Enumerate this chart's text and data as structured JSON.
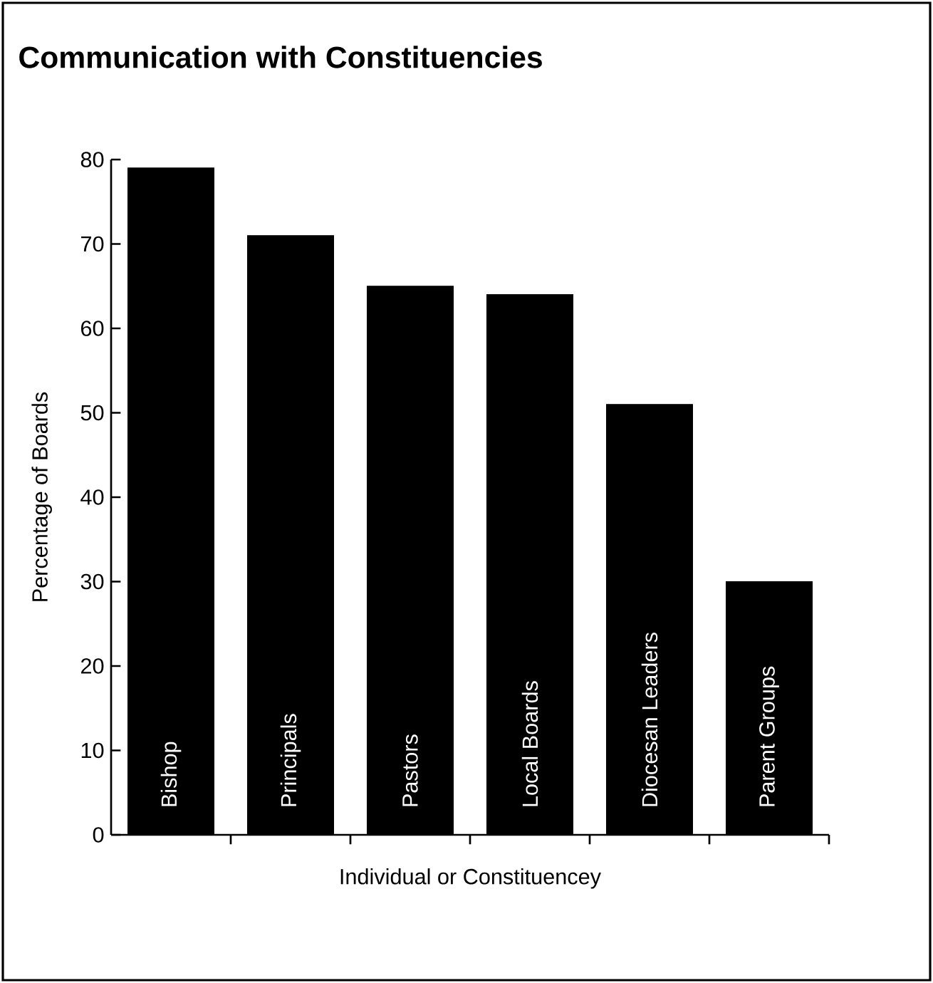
{
  "chart_data": {
    "type": "bar",
    "title": "Communication with Constituencies",
    "xlabel": "Individual or Constituencey",
    "ylabel": "Percentage of Boards",
    "categories": [
      "Bishop",
      "Principals",
      "Pastors",
      "Local Boards",
      "Diocesan Leaders",
      "Parent Groups"
    ],
    "values": [
      79,
      71,
      65,
      64,
      51,
      30
    ],
    "color": "#000000",
    "ylim": [
      0,
      80
    ],
    "yticks": [
      0,
      10,
      20,
      30,
      40,
      50,
      60,
      70,
      80
    ]
  }
}
